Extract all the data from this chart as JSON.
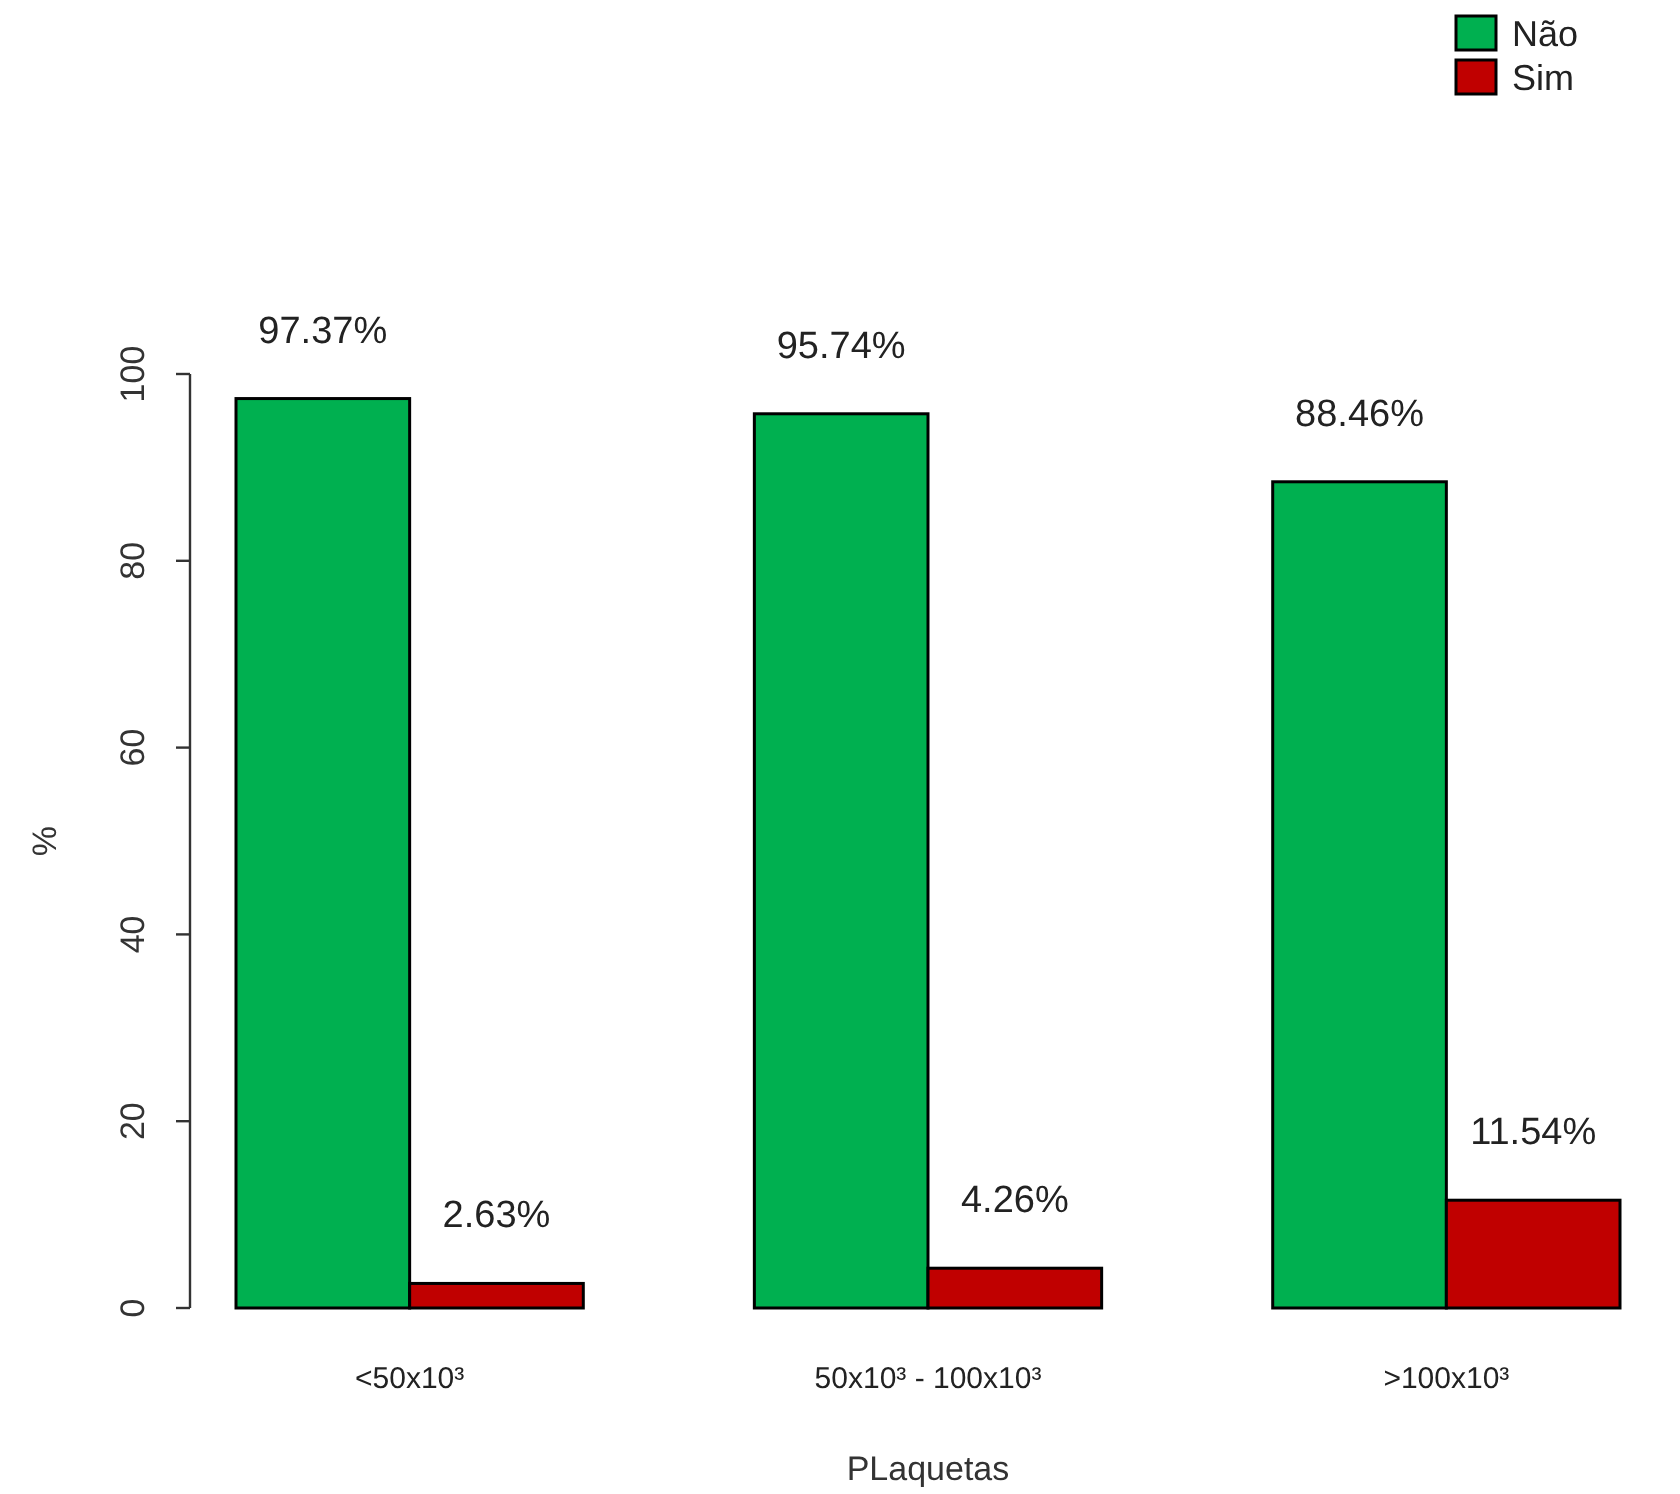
{
  "chart_data": {
    "type": "bar",
    "xlabel": "PLaquetas",
    "ylabel": "%",
    "categories": [
      "<50x10³",
      "50x10³ - 100x10³",
      ">100x10³"
    ],
    "series": [
      {
        "name": "Não",
        "color": "#00b050",
        "values": [
          97.37,
          95.74,
          88.46
        ],
        "value_labels": [
          "97.37%",
          "95.74%",
          "88.46%"
        ]
      },
      {
        "name": "Sim",
        "color": "#c00000",
        "values": [
          2.63,
          4.26,
          11.54
        ],
        "value_labels": [
          "2.63%",
          "4.26%",
          "11.54%"
        ]
      }
    ],
    "ylim": [
      0,
      100
    ],
    "yticks": [
      0,
      20,
      40,
      60,
      80,
      100
    ],
    "grid": false,
    "legend": "top right"
  }
}
